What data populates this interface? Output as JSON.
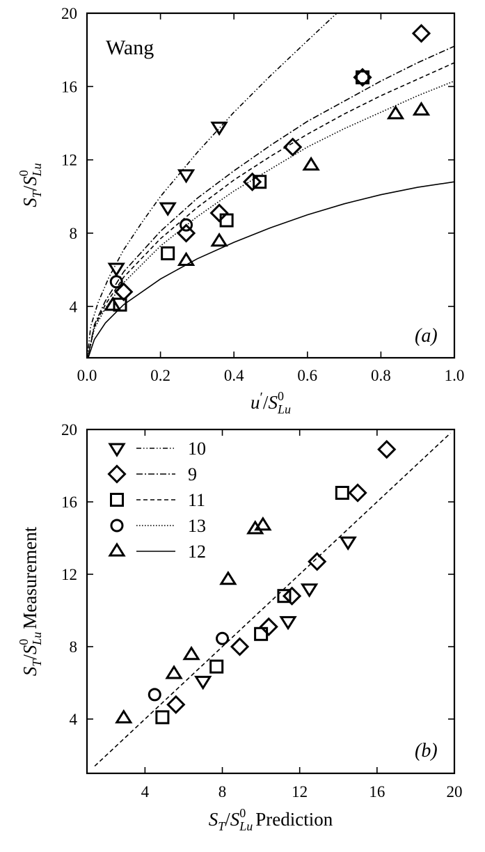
{
  "chart_data": [
    {
      "type": "scatter",
      "panel_label": "(a)",
      "title": "Wang",
      "xlabel": "u′/S⁰Lu",
      "ylabel": "ST/S⁰Lu",
      "xlim": [
        0.0,
        1.0
      ],
      "ylim": [
        1.2,
        20
      ],
      "xticks": [
        "0.0",
        "0.2",
        "0.4",
        "0.6",
        "0.8",
        "1.0"
      ],
      "yticks": [
        "4",
        "8",
        "12",
        "16",
        "20"
      ],
      "grid": false,
      "series": [
        {
          "marker": "triangle-down",
          "points": [
            [
              0.08,
              6.1
            ],
            [
              0.22,
              9.4
            ],
            [
              0.27,
              11.2
            ],
            [
              0.36,
              13.8
            ]
          ]
        },
        {
          "marker": "diamond",
          "points": [
            [
              0.1,
              4.8
            ],
            [
              0.27,
              8.0
            ],
            [
              0.36,
              9.1
            ],
            [
              0.45,
              10.8
            ],
            [
              0.56,
              12.7
            ],
            [
              0.75,
              16.5
            ],
            [
              0.91,
              18.9
            ]
          ]
        },
        {
          "marker": "square",
          "points": [
            [
              0.09,
              4.1
            ],
            [
              0.22,
              6.9
            ],
            [
              0.38,
              8.7
            ],
            [
              0.47,
              10.8
            ],
            [
              0.75,
              16.5
            ]
          ]
        },
        {
          "marker": "circle",
          "points": [
            [
              0.08,
              5.35
            ],
            [
              0.27,
              8.45
            ]
          ]
        },
        {
          "marker": "triangle-up",
          "points": [
            [
              0.07,
              4.05
            ],
            [
              0.27,
              6.5
            ],
            [
              0.36,
              7.55
            ],
            [
              0.61,
              11.7
            ],
            [
              0.84,
              14.5
            ],
            [
              0.91,
              14.7
            ]
          ]
        }
      ],
      "curves": [
        {
          "style": "dash-dot-dot",
          "points": [
            [
              0.0,
              1.0
            ],
            [
              0.01,
              2.9
            ],
            [
              0.03,
              4.2
            ],
            [
              0.06,
              5.6
            ],
            [
              0.1,
              7.1
            ],
            [
              0.15,
              8.6
            ],
            [
              0.2,
              10.0
            ],
            [
              0.3,
              12.4
            ],
            [
              0.4,
              14.6
            ],
            [
              0.5,
              16.6
            ],
            [
              0.6,
              18.5
            ],
            [
              0.68,
              20.0
            ]
          ]
        },
        {
          "style": "dash-dot",
          "points": [
            [
              0.0,
              1.0
            ],
            [
              0.02,
              3.0
            ],
            [
              0.05,
              4.3
            ],
            [
              0.1,
              5.9
            ],
            [
              0.2,
              8.1
            ],
            [
              0.3,
              9.9
            ],
            [
              0.4,
              11.4
            ],
            [
              0.5,
              12.8
            ],
            [
              0.6,
              14.1
            ],
            [
              0.7,
              15.2
            ],
            [
              0.8,
              16.3
            ],
            [
              0.9,
              17.3
            ],
            [
              1.0,
              18.2
            ]
          ]
        },
        {
          "style": "dashed",
          "points": [
            [
              0.0,
              1.0
            ],
            [
              0.02,
              2.9
            ],
            [
              0.05,
              4.1
            ],
            [
              0.1,
              5.6
            ],
            [
              0.2,
              7.7
            ],
            [
              0.3,
              9.4
            ],
            [
              0.4,
              10.9
            ],
            [
              0.5,
              12.2
            ],
            [
              0.6,
              13.4
            ],
            [
              0.7,
              14.5
            ],
            [
              0.8,
              15.5
            ],
            [
              0.9,
              16.4
            ],
            [
              1.0,
              17.3
            ]
          ]
        },
        {
          "style": "dotted",
          "points": [
            [
              0.0,
              1.0
            ],
            [
              0.02,
              2.8
            ],
            [
              0.05,
              3.9
            ],
            [
              0.1,
              5.3
            ],
            [
              0.2,
              7.3
            ],
            [
              0.3,
              8.9
            ],
            [
              0.4,
              10.3
            ],
            [
              0.5,
              11.5
            ],
            [
              0.6,
              12.7
            ],
            [
              0.7,
              13.7
            ],
            [
              0.8,
              14.6
            ],
            [
              0.9,
              15.5
            ],
            [
              1.0,
              16.3
            ]
          ]
        },
        {
          "style": "solid",
          "points": [
            [
              0.0,
              1.0
            ],
            [
              0.02,
              2.2
            ],
            [
              0.05,
              3.1
            ],
            [
              0.1,
              4.1
            ],
            [
              0.2,
              5.5
            ],
            [
              0.3,
              6.6
            ],
            [
              0.4,
              7.5
            ],
            [
              0.5,
              8.3
            ],
            [
              0.6,
              9.0
            ],
            [
              0.7,
              9.6
            ],
            [
              0.8,
              10.1
            ],
            [
              0.9,
              10.5
            ],
            [
              1.0,
              10.8
            ]
          ]
        }
      ]
    },
    {
      "type": "scatter",
      "panel_label": "(b)",
      "xlabel": "ST/S⁰Lu Prediction",
      "ylabel": "ST/S⁰Lu Measurement",
      "xlim": [
        1,
        20
      ],
      "ylim": [
        1,
        20
      ],
      "xticks": [
        "4",
        "8",
        "12",
        "16",
        "20"
      ],
      "yticks": [
        "4",
        "8",
        "12",
        "16",
        "20"
      ],
      "grid": false,
      "legend": {
        "position": "top-left",
        "entries": [
          {
            "marker": "triangle-down",
            "line": "dash-dot-dot",
            "label": "10"
          },
          {
            "marker": "diamond",
            "line": "dash-dot",
            "label": "9"
          },
          {
            "marker": "square",
            "line": "dashed",
            "label": "11"
          },
          {
            "marker": "circle",
            "line": "dotted",
            "label": "13"
          },
          {
            "marker": "triangle-up",
            "line": "solid",
            "label": "12"
          }
        ]
      },
      "reference_line": {
        "style": "dashed",
        "from": [
          1.4,
          1.4
        ],
        "to": [
          19.8,
          19.8
        ]
      },
      "series": [
        {
          "marker": "triangle-down",
          "points": [
            [
              7.0,
              6.1
            ],
            [
              11.4,
              9.4
            ],
            [
              12.5,
              11.2
            ],
            [
              14.5,
              13.8
            ]
          ]
        },
        {
          "marker": "diamond",
          "points": [
            [
              5.6,
              4.8
            ],
            [
              8.9,
              8.0
            ],
            [
              10.4,
              9.1
            ],
            [
              11.6,
              10.8
            ],
            [
              12.9,
              12.7
            ],
            [
              15.0,
              16.5
            ],
            [
              16.5,
              18.9
            ]
          ]
        },
        {
          "marker": "square",
          "points": [
            [
              4.9,
              4.1
            ],
            [
              7.7,
              6.9
            ],
            [
              10.0,
              8.7
            ],
            [
              11.2,
              10.8
            ],
            [
              14.2,
              16.5
            ]
          ]
        },
        {
          "marker": "circle",
          "points": [
            [
              4.5,
              5.35
            ],
            [
              8.0,
              8.45
            ]
          ]
        },
        {
          "marker": "triangle-up",
          "points": [
            [
              2.9,
              4.05
            ],
            [
              5.5,
              6.5
            ],
            [
              6.4,
              7.55
            ],
            [
              8.3,
              11.7
            ],
            [
              9.7,
              14.5
            ],
            [
              10.1,
              14.7
            ]
          ]
        }
      ]
    }
  ]
}
